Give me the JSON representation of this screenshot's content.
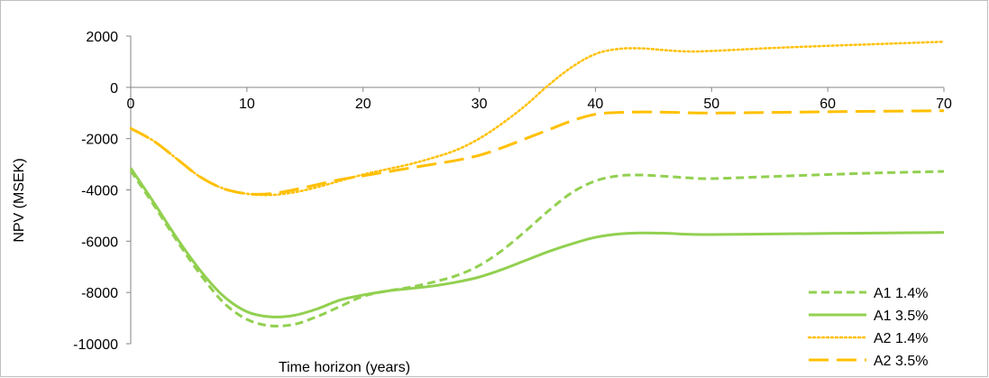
{
  "chart_data": {
    "type": "line",
    "title": "",
    "xlabel": "Time horizon (years)",
    "ylabel": "NPV (MSEK)",
    "xlim": [
      0,
      70
    ],
    "ylim": [
      -10000,
      2000
    ],
    "x_ticks": [
      0,
      10,
      20,
      30,
      40,
      50,
      60,
      70
    ],
    "y_ticks": [
      2000,
      0,
      -2000,
      -4000,
      -6000,
      -8000,
      -10000
    ],
    "x_tick_labels": [
      "0",
      "10",
      "20",
      "30",
      "40",
      "50",
      "60",
      "70"
    ],
    "y_tick_labels": [
      "2000",
      "0",
      "-2000",
      "-4000",
      "-6000",
      "-8000",
      "-10000"
    ],
    "grid": false,
    "legend_position": "bottom-right",
    "series": [
      {
        "name": "A1 1.4%",
        "color": "#92d050",
        "style": "dashed",
        "x": [
          0,
          2,
          4,
          6,
          8,
          10,
          12,
          14,
          16,
          18,
          20,
          22,
          24,
          26,
          28,
          30,
          32,
          34,
          36,
          38,
          40,
          42,
          44,
          46,
          48,
          50,
          55,
          60,
          65,
          70
        ],
        "y": [
          -3250,
          -4600,
          -6000,
          -7300,
          -8400,
          -9050,
          -9300,
          -9250,
          -8950,
          -8550,
          -8150,
          -7950,
          -7800,
          -7600,
          -7350,
          -6950,
          -6350,
          -5600,
          -4800,
          -4100,
          -3650,
          -3450,
          -3420,
          -3470,
          -3530,
          -3560,
          -3480,
          -3400,
          -3330,
          -3280
        ]
      },
      {
        "name": "A1 3.5%",
        "color": "#92d050",
        "style": "solid",
        "x": [
          0,
          2,
          4,
          6,
          8,
          10,
          12,
          14,
          16,
          18,
          20,
          22,
          24,
          26,
          28,
          30,
          32,
          34,
          36,
          38,
          40,
          42,
          44,
          46,
          48,
          50,
          55,
          60,
          65,
          70
        ],
        "y": [
          -3150,
          -4500,
          -5900,
          -7150,
          -8150,
          -8750,
          -8950,
          -8900,
          -8650,
          -8300,
          -8100,
          -7950,
          -7850,
          -7750,
          -7600,
          -7400,
          -7100,
          -6750,
          -6400,
          -6100,
          -5850,
          -5720,
          -5680,
          -5690,
          -5730,
          -5740,
          -5720,
          -5700,
          -5680,
          -5660
        ]
      },
      {
        "name": "A2 1.4%",
        "color": "#ffc000",
        "style": "dotted",
        "x": [
          0,
          2,
          4,
          6,
          8,
          10,
          12,
          14,
          16,
          18,
          20,
          22,
          24,
          26,
          28,
          30,
          32,
          34,
          36,
          38,
          40,
          42,
          44,
          46,
          48,
          50,
          55,
          60,
          65,
          70
        ],
        "y": [
          -1600,
          -2100,
          -2800,
          -3500,
          -3950,
          -4150,
          -4200,
          -4100,
          -3900,
          -3650,
          -3400,
          -3200,
          -3000,
          -2750,
          -2450,
          -2000,
          -1400,
          -700,
          100,
          800,
          1300,
          1500,
          1520,
          1450,
          1400,
          1420,
          1530,
          1620,
          1700,
          1780
        ]
      },
      {
        "name": "A2 3.5%",
        "color": "#ffc000",
        "style": "longdash",
        "x": [
          0,
          2,
          4,
          6,
          8,
          10,
          12,
          14,
          16,
          18,
          20,
          22,
          24,
          26,
          28,
          30,
          32,
          34,
          36,
          38,
          40,
          42,
          44,
          46,
          48,
          50,
          55,
          60,
          65,
          70
        ],
        "y": [
          -1600,
          -2100,
          -2800,
          -3500,
          -3950,
          -4150,
          -4150,
          -4000,
          -3800,
          -3600,
          -3450,
          -3300,
          -3150,
          -3000,
          -2850,
          -2650,
          -2350,
          -2000,
          -1650,
          -1300,
          -1050,
          -980,
          -960,
          -970,
          -990,
          -1000,
          -980,
          -950,
          -930,
          -910
        ]
      }
    ]
  }
}
